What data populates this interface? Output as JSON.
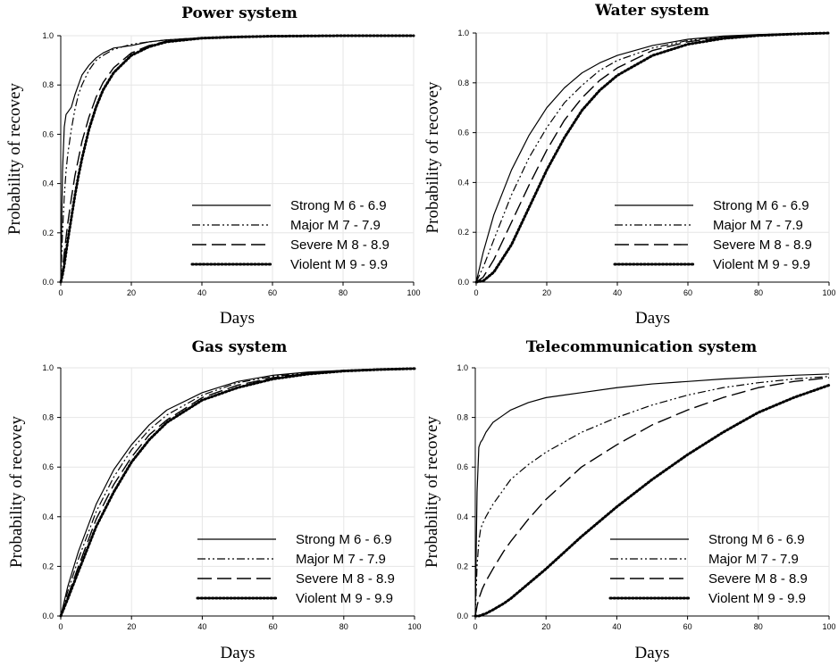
{
  "chart_data": [
    {
      "type": "line",
      "title": "Power system",
      "xlabel": "Days",
      "ylabel": "Probability of recovey",
      "xlim": [
        0,
        100
      ],
      "ylim": [
        0,
        1
      ],
      "x_ticks": [
        "0",
        "20",
        "40",
        "60",
        "80",
        "100"
      ],
      "y_ticks": [
        "0.0",
        "0.2",
        "0.4",
        "0.6",
        "0.8",
        "1.0"
      ],
      "grid": true,
      "legend_position": "bottom-right",
      "x": [
        0,
        0.5,
        1,
        1.5,
        2,
        3,
        4,
        5,
        6,
        8,
        10,
        12,
        15,
        20,
        25,
        30,
        40,
        50,
        60,
        70,
        80,
        90,
        100
      ],
      "series": [
        {
          "name": "Strong M 6 - 6.9",
          "style": "solid",
          "values": [
            0,
            0.45,
            0.63,
            0.68,
            0.69,
            0.71,
            0.76,
            0.8,
            0.84,
            0.88,
            0.91,
            0.93,
            0.95,
            0.96,
            0.975,
            0.983,
            0.992,
            0.996,
            0.998,
            0.999,
            1,
            1,
            1
          ]
        },
        {
          "name": "Major  M 7 - 7.9",
          "style": "dashdotdot",
          "values": [
            0,
            0.2,
            0.35,
            0.45,
            0.52,
            0.62,
            0.7,
            0.76,
            0.8,
            0.86,
            0.9,
            0.92,
            0.945,
            0.965,
            0.975,
            0.983,
            0.992,
            0.996,
            0.998,
            0.999,
            1,
            1,
            1
          ]
        },
        {
          "name": "Severe M 8 - 8.9",
          "style": "longdash",
          "values": [
            0,
            0.05,
            0.12,
            0.18,
            0.24,
            0.34,
            0.43,
            0.5,
            0.57,
            0.67,
            0.75,
            0.81,
            0.87,
            0.93,
            0.96,
            0.978,
            0.99,
            0.995,
            0.998,
            0.999,
            1,
            1,
            1
          ]
        },
        {
          "name": "Violent M 9 - 9.9",
          "style": "dotted",
          "values": [
            0,
            0.03,
            0.07,
            0.12,
            0.17,
            0.26,
            0.35,
            0.43,
            0.5,
            0.62,
            0.71,
            0.78,
            0.85,
            0.92,
            0.955,
            0.975,
            0.99,
            0.995,
            0.998,
            0.999,
            1,
            1,
            1
          ]
        }
      ]
    },
    {
      "type": "line",
      "title": "Water system",
      "xlabel": "Days",
      "ylabel": "Probability of recovey",
      "xlim": [
        0,
        100
      ],
      "ylim": [
        0,
        1
      ],
      "x_ticks": [
        "0",
        "20",
        "40",
        "60",
        "80",
        "100"
      ],
      "y_ticks": [
        "0.0",
        "0.2",
        "0.4",
        "0.6",
        "0.8",
        "1.0"
      ],
      "grid": true,
      "legend_position": "bottom-right",
      "x": [
        0,
        2,
        5,
        10,
        15,
        20,
        25,
        30,
        35,
        40,
        50,
        60,
        70,
        80,
        90,
        100
      ],
      "series": [
        {
          "name": "Strong M 6 - 6.9",
          "style": "solid",
          "values": [
            0,
            0.12,
            0.27,
            0.45,
            0.59,
            0.7,
            0.78,
            0.84,
            0.88,
            0.91,
            0.95,
            0.975,
            0.988,
            0.994,
            0.998,
            1
          ]
        },
        {
          "name": "Major  M 7 - 7.9",
          "style": "dashdotdot",
          "values": [
            0,
            0.06,
            0.17,
            0.35,
            0.5,
            0.62,
            0.72,
            0.79,
            0.85,
            0.89,
            0.94,
            0.97,
            0.985,
            0.993,
            0.997,
            1
          ]
        },
        {
          "name": "Severe M 8 - 8.9",
          "style": "longdash",
          "values": [
            0,
            0.02,
            0.09,
            0.24,
            0.39,
            0.53,
            0.65,
            0.74,
            0.81,
            0.86,
            0.93,
            0.965,
            0.983,
            0.992,
            0.997,
            1
          ]
        },
        {
          "name": "Violent M 9 - 9.9",
          "style": "dotted",
          "values": [
            0,
            0.005,
            0.04,
            0.15,
            0.3,
            0.45,
            0.58,
            0.69,
            0.77,
            0.83,
            0.91,
            0.955,
            0.978,
            0.99,
            0.996,
            1
          ]
        }
      ]
    },
    {
      "type": "line",
      "title": "Gas system",
      "xlabel": "Days",
      "ylabel": "Probability of recovey",
      "xlim": [
        0,
        100
      ],
      "ylim": [
        0,
        1
      ],
      "x_ticks": [
        "0",
        "20",
        "40",
        "60",
        "80",
        "100"
      ],
      "y_ticks": [
        "0.0",
        "0.2",
        "0.4",
        "0.6",
        "0.8",
        "1.0"
      ],
      "grid": true,
      "legend_position": "bottom-right",
      "x": [
        0,
        2,
        5,
        10,
        15,
        20,
        25,
        30,
        40,
        50,
        60,
        70,
        80,
        90,
        100
      ],
      "series": [
        {
          "name": "Strong M 6 - 6.9",
          "style": "solid",
          "values": [
            0,
            0.12,
            0.26,
            0.45,
            0.59,
            0.69,
            0.77,
            0.83,
            0.9,
            0.945,
            0.97,
            0.983,
            0.99,
            0.995,
            0.998
          ]
        },
        {
          "name": "Major  M 7 - 7.9",
          "style": "dashdotdot",
          "values": [
            0,
            0.1,
            0.23,
            0.42,
            0.56,
            0.67,
            0.75,
            0.81,
            0.89,
            0.94,
            0.965,
            0.98,
            0.99,
            0.995,
            0.998
          ]
        },
        {
          "name": "Severe M 8 - 8.9",
          "style": "longdash",
          "values": [
            0,
            0.08,
            0.2,
            0.39,
            0.53,
            0.64,
            0.73,
            0.79,
            0.88,
            0.93,
            0.96,
            0.978,
            0.988,
            0.994,
            0.997
          ]
        },
        {
          "name": "Violent M 9 - 9.9",
          "style": "dotted",
          "values": [
            0,
            0.07,
            0.18,
            0.36,
            0.5,
            0.62,
            0.71,
            0.78,
            0.87,
            0.92,
            0.955,
            0.975,
            0.987,
            0.993,
            0.997
          ]
        }
      ]
    },
    {
      "type": "line",
      "title": "Telecommunication system",
      "xlabel": "Days",
      "ylabel": "Probability of recovey",
      "xlim": [
        0,
        100
      ],
      "ylim": [
        0,
        1
      ],
      "x_ticks": [
        "0",
        "20",
        "40",
        "60",
        "80",
        "100"
      ],
      "y_ticks": [
        "0.0",
        "0.2",
        "0.4",
        "0.6",
        "0.8",
        "1.0"
      ],
      "grid": true,
      "legend_position": "bottom-right",
      "x": [
        0,
        0.5,
        1,
        1.5,
        2,
        3,
        5,
        8,
        10,
        15,
        20,
        30,
        40,
        50,
        60,
        70,
        80,
        90,
        100
      ],
      "series": [
        {
          "name": "Strong M 6 - 6.9",
          "style": "solid",
          "values": [
            0,
            0.5,
            0.68,
            0.7,
            0.71,
            0.74,
            0.78,
            0.81,
            0.83,
            0.86,
            0.88,
            0.9,
            0.92,
            0.935,
            0.945,
            0.955,
            0.963,
            0.97,
            0.975
          ]
        },
        {
          "name": "Major  M 7 - 7.9",
          "style": "dashdotdot",
          "values": [
            0,
            0.2,
            0.3,
            0.35,
            0.37,
            0.4,
            0.45,
            0.51,
            0.55,
            0.61,
            0.66,
            0.74,
            0.8,
            0.85,
            0.89,
            0.92,
            0.94,
            0.955,
            0.965
          ]
        },
        {
          "name": "Severe M 8 - 8.9",
          "style": "longdash",
          "values": [
            0,
            0.04,
            0.07,
            0.09,
            0.11,
            0.14,
            0.19,
            0.26,
            0.3,
            0.39,
            0.47,
            0.6,
            0.69,
            0.77,
            0.83,
            0.88,
            0.92,
            0.945,
            0.96
          ]
        },
        {
          "name": "Violent M 9 - 9.9",
          "style": "dotted",
          "values": [
            0,
            0,
            0,
            0.002,
            0.005,
            0.01,
            0.025,
            0.05,
            0.07,
            0.13,
            0.19,
            0.32,
            0.44,
            0.55,
            0.65,
            0.74,
            0.82,
            0.88,
            0.93
          ]
        }
      ]
    }
  ]
}
